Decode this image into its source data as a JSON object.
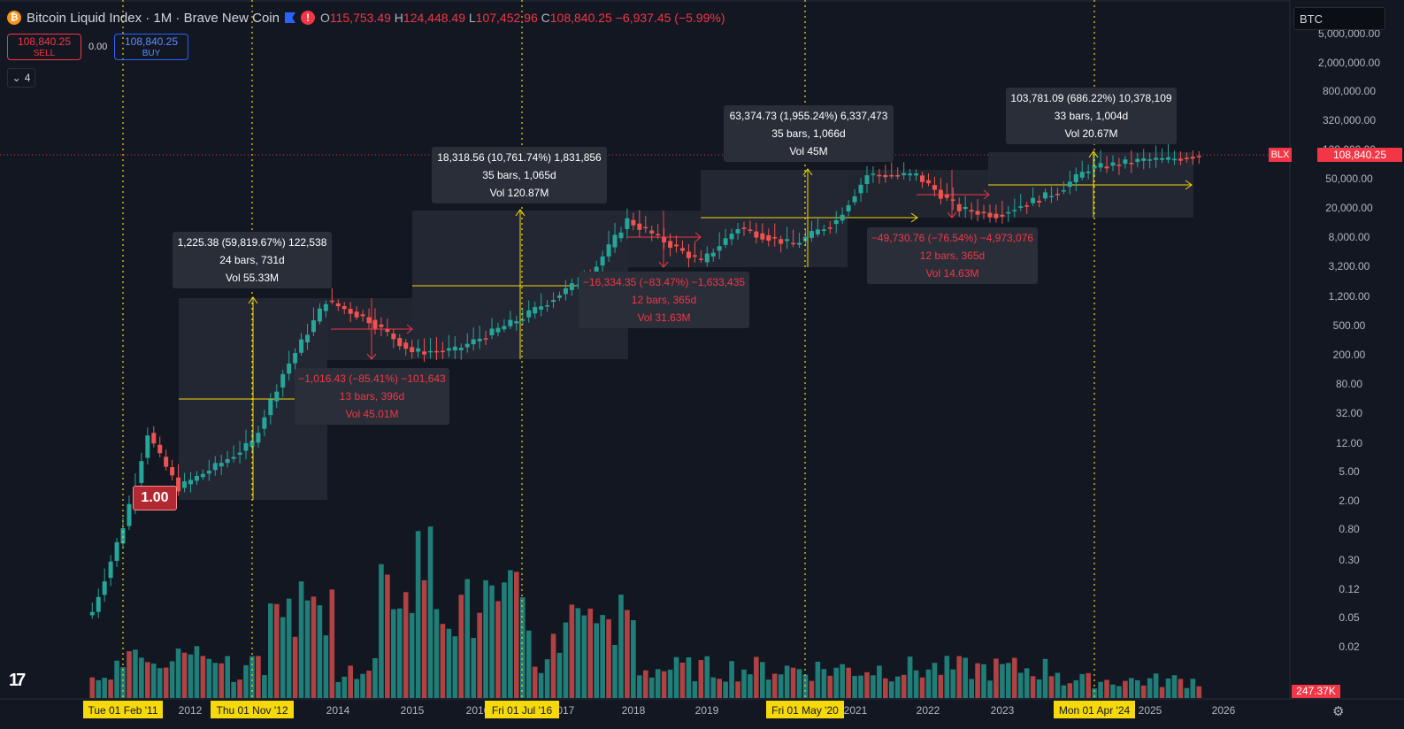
{
  "header": {
    "coin_icon": "bitcoin-icon",
    "title": "Bitcoin Liquid Index · 1M · Brave New Coin",
    "ohlc": {
      "o_label": "O",
      "o": "115,753.49",
      "h_label": "H",
      "h": "124,448.49",
      "l_label": "L",
      "l": "107,452.96",
      "c_label": "C",
      "c": "108,840.25",
      "change": "−6,937.45 (−5.99%)"
    }
  },
  "trade": {
    "sell_price": "108,840.25",
    "sell_label": "SELL",
    "spread": "0.00",
    "buy_price": "108,840.25",
    "buy_label": "BUY"
  },
  "indicators_count": "4",
  "symbol_search": "BTC",
  "price_scale": {
    "current_price": "108,840.25",
    "symbol_tag": "BLX",
    "volume_label": "247.37K",
    "labels": [
      "5,000,000.00",
      "2,000,000.00",
      "800,000.00",
      "320,000.00",
      "128,000.00",
      "50,000.00",
      "20,000.00",
      "8,000.00",
      "3,200.00",
      "1,200.00",
      "500.00",
      "200.00",
      "80.00",
      "32.00",
      "12.00",
      "5.00",
      "2.00",
      "0.80",
      "0.30",
      "0.12",
      "0.05",
      "0.02"
    ]
  },
  "time_axis": {
    "labels": [
      "2012",
      "2014",
      "2015",
      "2016",
      "2017",
      "2018",
      "2019",
      "2021",
      "2022",
      "2023",
      "2025",
      "2026"
    ],
    "highlights": [
      "Tue 01 Feb '11",
      "Thu 01 Nov '12",
      "Fri 01 Jul '16",
      "Fri 01 May '20",
      "Mon 01 Apr '24"
    ]
  },
  "marker_value": "1.00",
  "measurements": [
    {
      "line1": "1,225.38 (59,819.67%) 122,538",
      "line2": "24 bars, 731d",
      "line3": "Vol 55.33M",
      "kind": "up"
    },
    {
      "line1": "−1,016.43 (−85.41%) −101,643",
      "line2": "13 bars, 396d",
      "line3": "Vol 45.01M",
      "kind": "down"
    },
    {
      "line1": "18,318.56 (10,761.74%) 1,831,856",
      "line2": "35 bars, 1,065d",
      "line3": "Vol 120.87M",
      "kind": "up"
    },
    {
      "line1": "−16,334.35 (−83.47%) −1,633,435",
      "line2": "12 bars, 365d",
      "line3": "Vol 31.63M",
      "kind": "down"
    },
    {
      "line1": "63,374.73 (1,955.24%) 6,337,473",
      "line2": "35 bars, 1,066d",
      "line3": "Vol 45M",
      "kind": "up"
    },
    {
      "line1": "−49,730.76 (−76.54%) −4,973,076",
      "line2": "12 bars, 365d",
      "line3": "Vol 14.63M",
      "kind": "down"
    },
    {
      "line1": "103,781.09 (686.22%) 10,378,109",
      "line2": "33 bars, 1,004d",
      "line3": "Vol 20.67M",
      "kind": "up"
    }
  ],
  "chart_data": {
    "type": "candlestick",
    "scale": "log",
    "colors": {
      "up": "#26a69a",
      "down": "#ef5350",
      "drawing": "#f5d90a",
      "box": "#2a2e39"
    },
    "ylim": [
      0.01,
      5000000
    ],
    "candles": [
      {
        "x": "2010-09",
        "close": 0.06
      },
      {
        "x": "2010-12",
        "close": 0.3
      },
      {
        "x": "2011-02",
        "close": 0.9
      },
      {
        "x": "2011-04",
        "close": 3.5
      },
      {
        "x": "2011-06",
        "close": 17
      },
      {
        "x": "2011-08",
        "close": 8
      },
      {
        "x": "2011-11",
        "close": 3
      },
      {
        "x": "2012-06",
        "close": 6.6
      },
      {
        "x": "2012-11",
        "close": 12.5
      },
      {
        "x": "2013-04",
        "close": 110
      },
      {
        "x": "2013-11",
        "close": 1100
      },
      {
        "x": "2014-06",
        "close": 600
      },
      {
        "x": "2015-01",
        "close": 220
      },
      {
        "x": "2015-08",
        "close": 230
      },
      {
        "x": "2016-07",
        "close": 650
      },
      {
        "x": "2017-06",
        "close": 2500
      },
      {
        "x": "2017-12",
        "close": 14000
      },
      {
        "x": "2018-12",
        "close": 3700
      },
      {
        "x": "2019-06",
        "close": 11000
      },
      {
        "x": "2020-03",
        "close": 6400
      },
      {
        "x": "2020-10",
        "close": 13800
      },
      {
        "x": "2021-03",
        "close": 58000
      },
      {
        "x": "2021-11",
        "close": 57000
      },
      {
        "x": "2022-06",
        "close": 19800
      },
      {
        "x": "2022-12",
        "close": 16500
      },
      {
        "x": "2023-10",
        "close": 34500
      },
      {
        "x": "2024-03",
        "close": 71000
      },
      {
        "x": "2024-12",
        "close": 93000
      },
      {
        "x": "2025-04",
        "close": 94000
      },
      {
        "x": "2025-09",
        "close": 108840
      }
    ]
  }
}
